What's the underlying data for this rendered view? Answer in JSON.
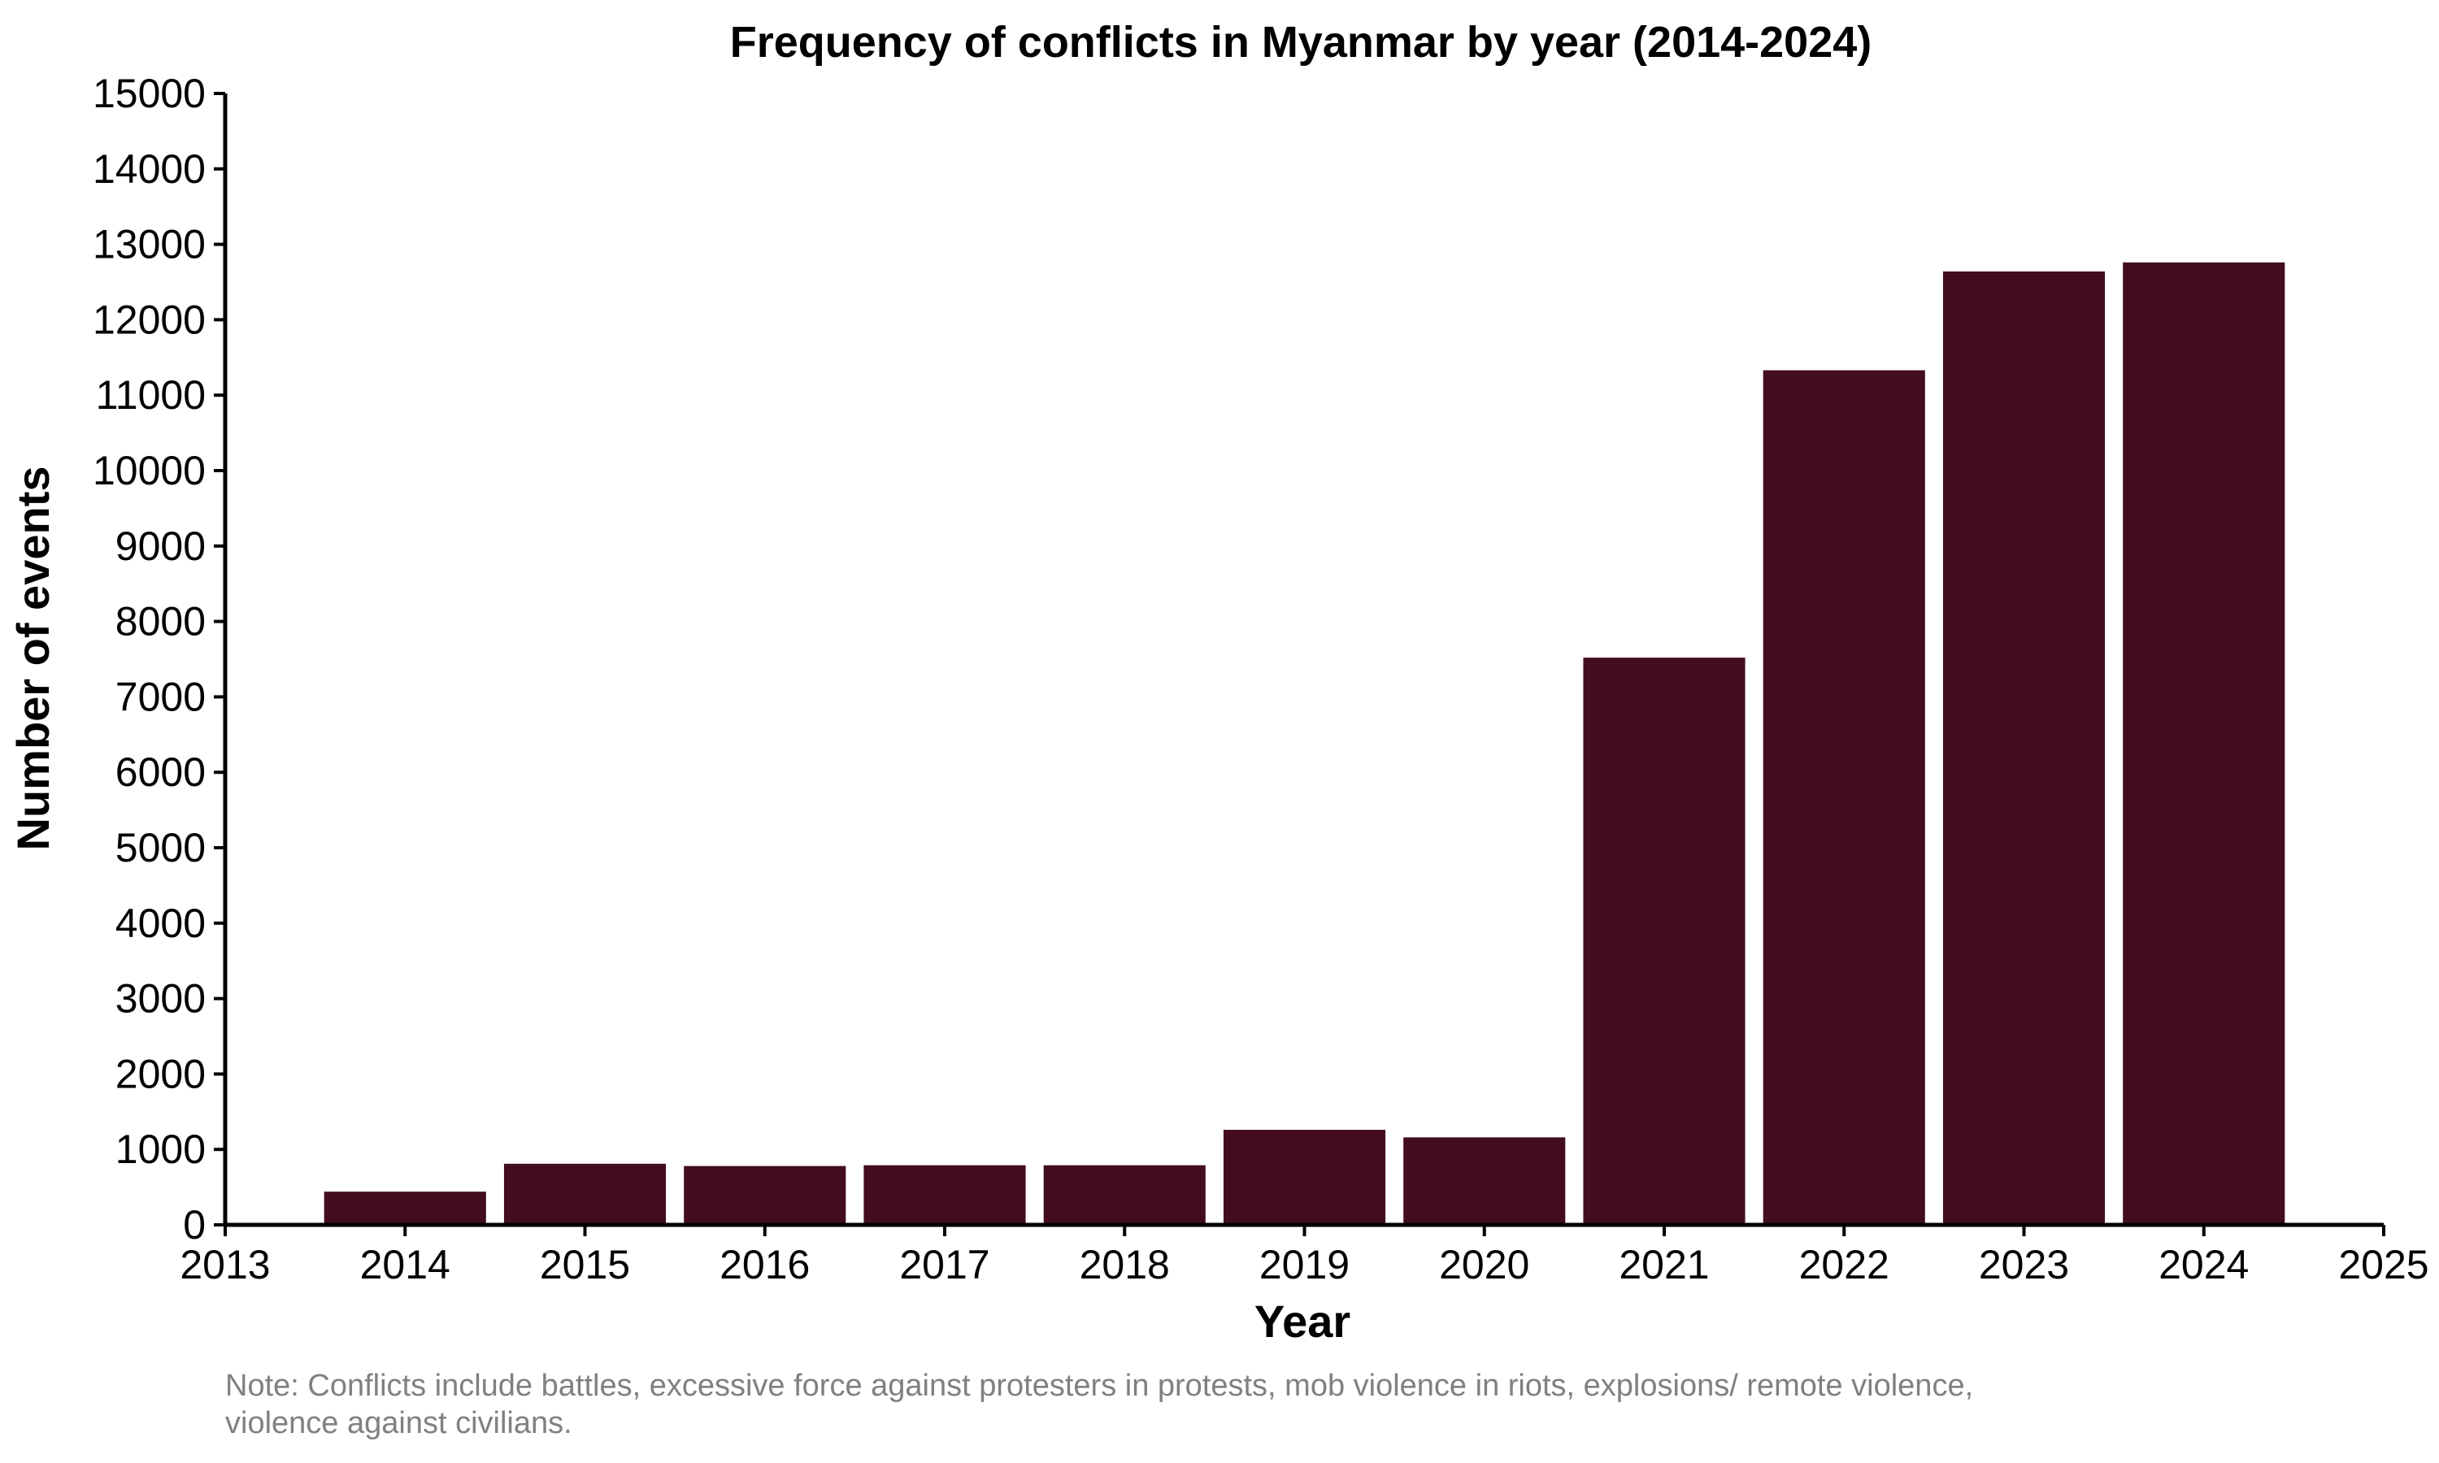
{
  "chart_data": {
    "type": "bar",
    "title": "Frequency of conflicts in Myanmar by year (2014-2024)",
    "xlabel": "Year",
    "ylabel": "Number of events",
    "x": [
      2014,
      2015,
      2016,
      2017,
      2018,
      2019,
      2020,
      2021,
      2022,
      2023,
      2024
    ],
    "values": [
      440,
      810,
      780,
      790,
      790,
      1260,
      1160,
      7520,
      11330,
      12640,
      12760
    ],
    "xlim": [
      2013,
      2025
    ],
    "ylim": [
      0,
      15000
    ],
    "xticks": [
      "2013",
      "2014",
      "2015",
      "2016",
      "2017",
      "2018",
      "2019",
      "2020",
      "2021",
      "2022",
      "2023",
      "2024",
      "2025"
    ],
    "yticks": [
      "0",
      "1000",
      "2000",
      "3000",
      "4000",
      "5000",
      "6000",
      "7000",
      "8000",
      "9000",
      "10000",
      "11000",
      "12000",
      "13000",
      "14000",
      "15000"
    ],
    "bar_color": "#430c20",
    "grid": false,
    "legend": "none",
    "note_lines": [
      "Note: Conflicts include battles, excessive force against protesters in protests, mob violence in riots, explosions/ remote violence,",
      "violence against civilians."
    ]
  }
}
